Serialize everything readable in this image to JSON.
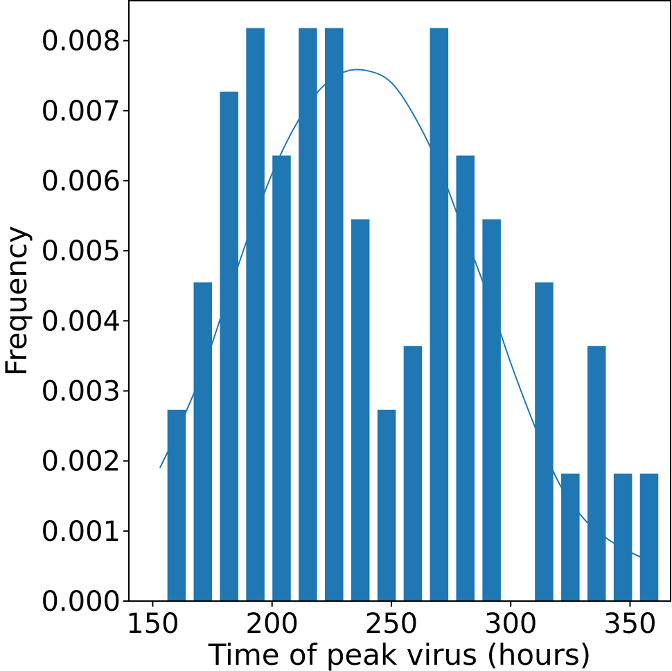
{
  "chart_data": {
    "type": "bar",
    "xlabel": "Time of peak virus (hours)",
    "ylabel": "Frequency",
    "xlim": [
      140,
      367
    ],
    "ylim": [
      0,
      0.00857
    ],
    "xticks": [
      150,
      200,
      250,
      300,
      350
    ],
    "xtick_labels": [
      "150",
      "200",
      "250",
      "300",
      "350"
    ],
    "yticks": [
      0,
      0.001,
      0.002,
      0.003,
      0.004,
      0.005,
      0.006,
      0.007,
      0.008
    ],
    "ytick_labels": [
      "0.000",
      "0.001",
      "0.002",
      "0.003",
      "0.004",
      "0.005",
      "0.006",
      "0.007",
      "0.008"
    ],
    "bar_width": 7.7,
    "bar_centers": [
      160,
      171,
      182,
      193,
      204,
      215,
      226,
      237,
      248,
      259,
      270,
      281,
      292,
      303,
      314,
      325,
      336,
      347,
      358
    ],
    "values": [
      0.00273,
      0.00455,
      0.00727,
      0.00818,
      0.00636,
      0.00818,
      0.00818,
      0.00545,
      0.00273,
      0.00364,
      0.00818,
      0.00636,
      0.00545,
      0,
      0.00455,
      0.00182,
      0.00364,
      0.00182,
      0.00182
    ],
    "density_curve": {
      "x": [
        153,
        160,
        170,
        180,
        190,
        200,
        210,
        220,
        230,
        240,
        250,
        260,
        270,
        280,
        290,
        300,
        310,
        320,
        330,
        340,
        350,
        361
      ],
      "y": [
        0.0019,
        0.0024,
        0.0032,
        0.0042,
        0.0052,
        0.0061,
        0.0068,
        0.0073,
        0.00755,
        0.00757,
        0.0074,
        0.0069,
        0.0062,
        0.0053,
        0.0044,
        0.0034,
        0.0025,
        0.0017,
        0.0012,
        0.0009,
        0.0007,
        0.00053
      ]
    },
    "bar_color": "#1f77b4",
    "line_color": "#1f77b4",
    "grid": false,
    "legend": "none"
  }
}
